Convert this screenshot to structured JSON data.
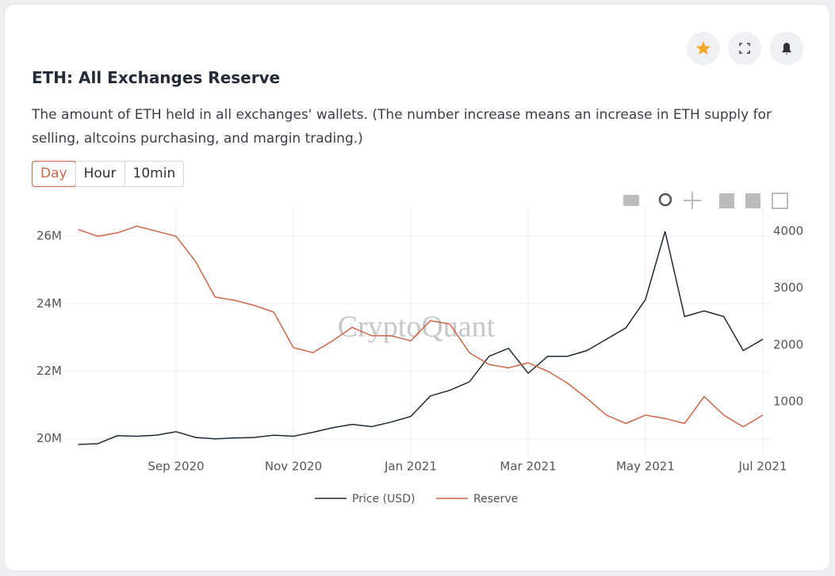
{
  "header": {
    "title": "ETH: All Exchanges Reserve",
    "description": "The amount of ETH held in all exchanges' wallets. (The number increase means an increase in ETH supply for selling, altcoins purchasing, and margin trading.)",
    "tabs": [
      "Day",
      "Hour",
      "10min"
    ],
    "active_tab": 0
  },
  "chart_data": {
    "type": "line",
    "watermark": "CryptoQuant",
    "categories": [
      null,
      null,
      null,
      null,
      null,
      "Sep 2020",
      null,
      null,
      null,
      null,
      null,
      "Nov 2020",
      null,
      null,
      null,
      null,
      null,
      "Jan 2021",
      null,
      null,
      null,
      null,
      null,
      "Mar 2021",
      null,
      null,
      null,
      null,
      null,
      "May 2021",
      null,
      null,
      null,
      null,
      null,
      "Jul 2021"
    ],
    "series": [
      {
        "name": "Price (USD)",
        "color": "#1f2a36",
        "axis": "y2",
        "values": [
          246,
          260,
          400,
          390,
          410,
          470,
          370,
          345,
          360,
          370,
          410,
          390,
          460,
          540,
          600,
          560,
          640,
          740,
          1100,
          1200,
          1350,
          1800,
          1940,
          1500,
          1800,
          1800,
          1900,
          2100,
          2300,
          2800,
          4000,
          2500,
          2600,
          2500,
          1900,
          2100
        ]
      },
      {
        "name": "Reserve",
        "color": "#d0664a",
        "values": [
          26200000,
          26000000,
          26100000,
          26300000,
          26150000,
          26000000,
          25250000,
          24200000,
          24100000,
          23950000,
          23750000,
          22700000,
          22550000,
          22900000,
          23300000,
          23050000,
          23050000,
          22900000,
          23500000,
          23400000,
          22550000,
          22200000,
          22100000,
          22250000,
          22000000,
          21650000,
          21200000,
          20700000,
          20450000,
          20700000,
          20600000,
          20450000,
          21250000,
          20700000,
          20350000,
          20700000
        ]
      }
    ],
    "ylim": [
      19500000,
      26850000
    ],
    "yticks": [
      {
        "value": 20000000,
        "label": "20M"
      },
      {
        "value": 22000000,
        "label": "22M"
      },
      {
        "value": 24000000,
        "label": "24M"
      },
      {
        "value": 26000000,
        "label": "26M"
      }
    ],
    "y2lim": [
      50,
      4420
    ],
    "y2ticks": [
      1000,
      2000,
      3000,
      4000
    ],
    "grid": true,
    "legend": "bottom"
  }
}
